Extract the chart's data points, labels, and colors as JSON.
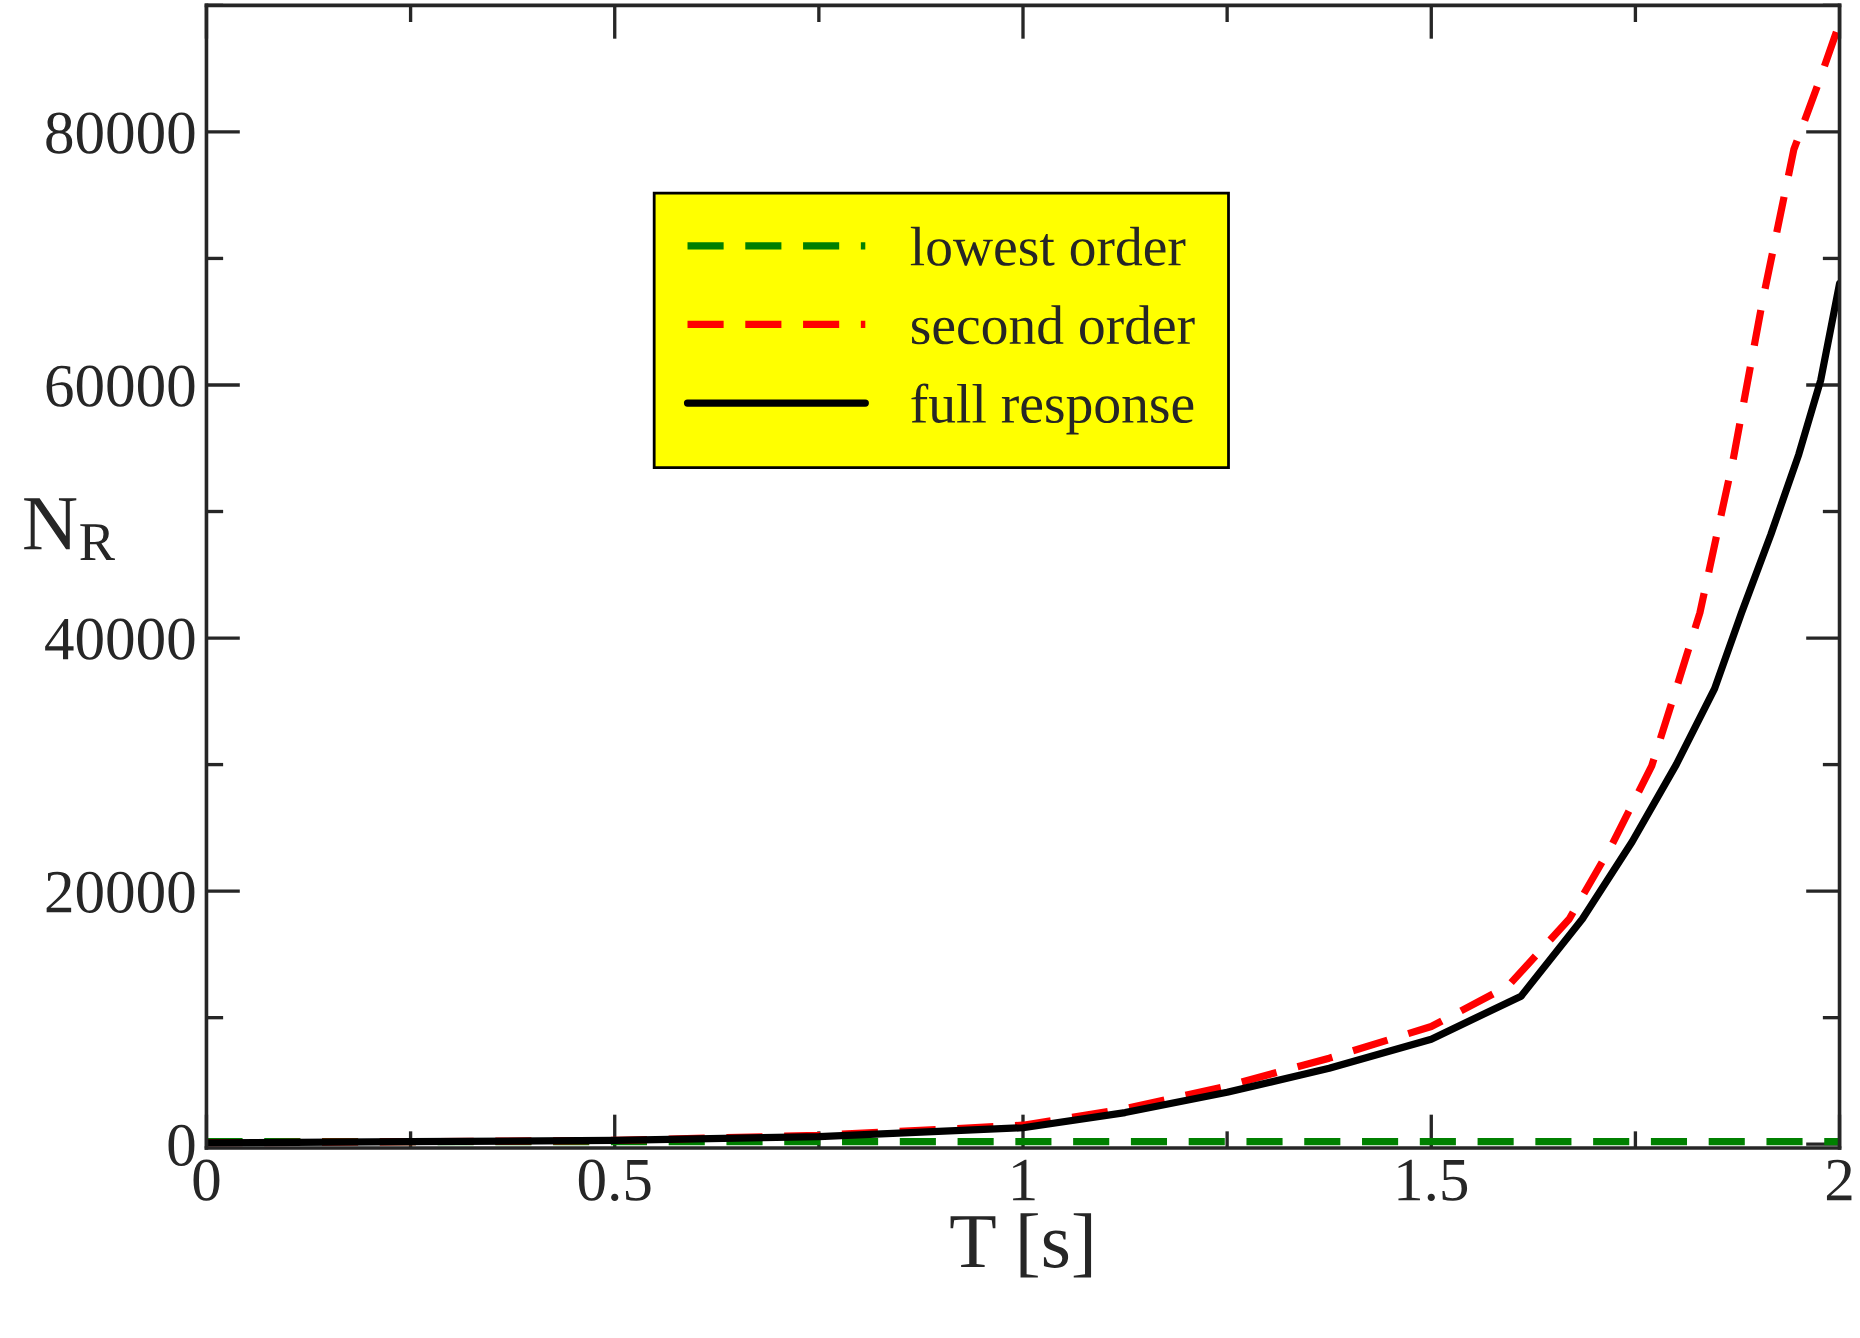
{
  "chart_data": {
    "type": "line",
    "xlabel": "T [s]",
    "ylabel": "N$_{R}$",
    "xlim": [
      0,
      2
    ],
    "xticks": [
      0,
      0.5,
      1,
      1.5,
      2
    ],
    "ylim": [
      -300,
      90000
    ],
    "yticks": [
      0,
      20000,
      40000,
      60000,
      80000
    ],
    "grid": false,
    "legend": "top center",
    "marker": "none",
    "series": [
      {
        "name": "lowest order",
        "color": "#008000",
        "line_style": "dashed",
        "x": [
          0,
          0.5,
          1,
          1.5,
          2
        ],
        "values": [
          200,
          200,
          200,
          200,
          200
        ]
      },
      {
        "name": "second order",
        "color": "#ff0000",
        "line_style": "dashed",
        "x": [
          0,
          0.25,
          0.5,
          0.75,
          1,
          1.125,
          1.25,
          1.375,
          1.5,
          1.594,
          1.669,
          1.72,
          1.77,
          1.8,
          1.829,
          1.87,
          1.905,
          1.944,
          1.975,
          2
        ],
        "values": [
          100,
          200,
          300,
          700,
          1500,
          2800,
          4600,
          6800,
          9300,
          12500,
          17800,
          23500,
          29900,
          36000,
          42000,
          54200,
          66400,
          78600,
          84000,
          88600
        ]
      },
      {
        "name": "full response",
        "color": "#000000",
        "line_style": "solid",
        "x": [
          0,
          0.25,
          0.5,
          0.75,
          1,
          1.125,
          1.25,
          1.375,
          1.5,
          1.61,
          1.685,
          1.746,
          1.8,
          1.847,
          1.88,
          1.916,
          1.95,
          1.977,
          2
        ],
        "values": [
          100,
          200,
          300,
          600,
          1300,
          2500,
          4100,
          6000,
          8300,
          11700,
          17800,
          23900,
          30000,
          36000,
          42000,
          48200,
          54500,
          60400,
          68000
        ]
      }
    ]
  }
}
